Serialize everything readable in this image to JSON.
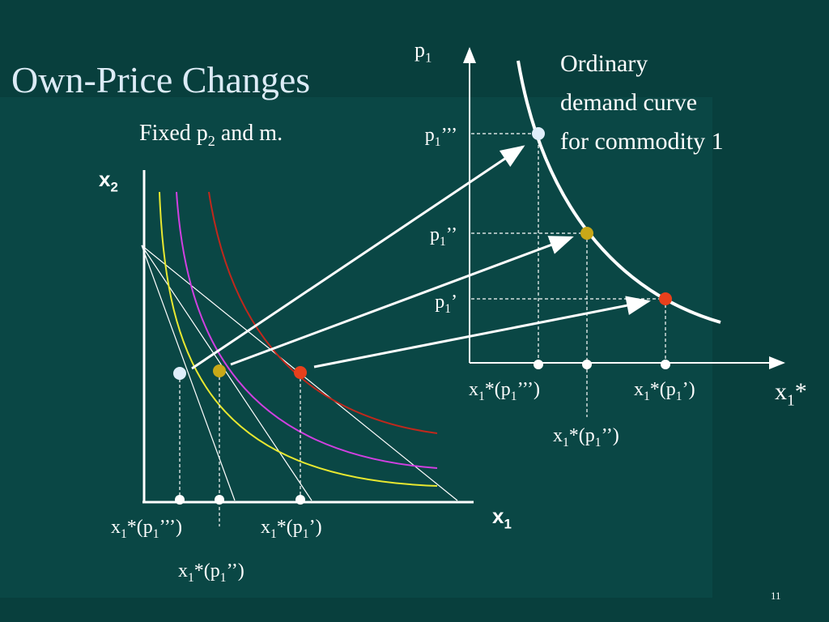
{
  "title": "Own-Price Changes",
  "subtitle": {
    "parts": [
      "Fixed p",
      "2",
      " and m."
    ]
  },
  "left_diagram": {
    "y_axis_label": {
      "parts": [
        "x",
        "2"
      ]
    },
    "x_axis_label": {
      "parts": [
        "x",
        "1"
      ]
    },
    "tick_labels": [
      {
        "parts": [
          "x",
          "1",
          "*(p",
          "1",
          "’’’)"
        ]
      },
      {
        "parts": [
          "x",
          "1",
          "*(p",
          "1",
          "’’)"
        ]
      },
      {
        "parts": [
          "x",
          "1",
          "*(p",
          "1",
          "’)"
        ]
      }
    ]
  },
  "right_diagram": {
    "y_axis_label": {
      "parts": [
        "p",
        "1"
      ]
    },
    "x_axis_label": {
      "parts": [
        "x",
        "1",
        "*"
      ]
    },
    "price_labels": [
      {
        "parts": [
          "p",
          "1",
          "’’’"
        ]
      },
      {
        "parts": [
          "p",
          "1",
          "’’"
        ]
      },
      {
        "parts": [
          "p",
          "1",
          "’"
        ]
      }
    ],
    "quantity_labels": [
      {
        "parts": [
          "x",
          "1",
          "*(p",
          "1",
          "’’’)"
        ]
      },
      {
        "parts": [
          "x",
          "1",
          "*(p",
          "1",
          "’’)"
        ]
      },
      {
        "parts": [
          "x",
          "1",
          "*(p",
          "1",
          "’)"
        ]
      }
    ],
    "curve_label": [
      "Ordinary",
      "demand curve",
      "for commodity 1"
    ]
  },
  "page_number": "11"
}
